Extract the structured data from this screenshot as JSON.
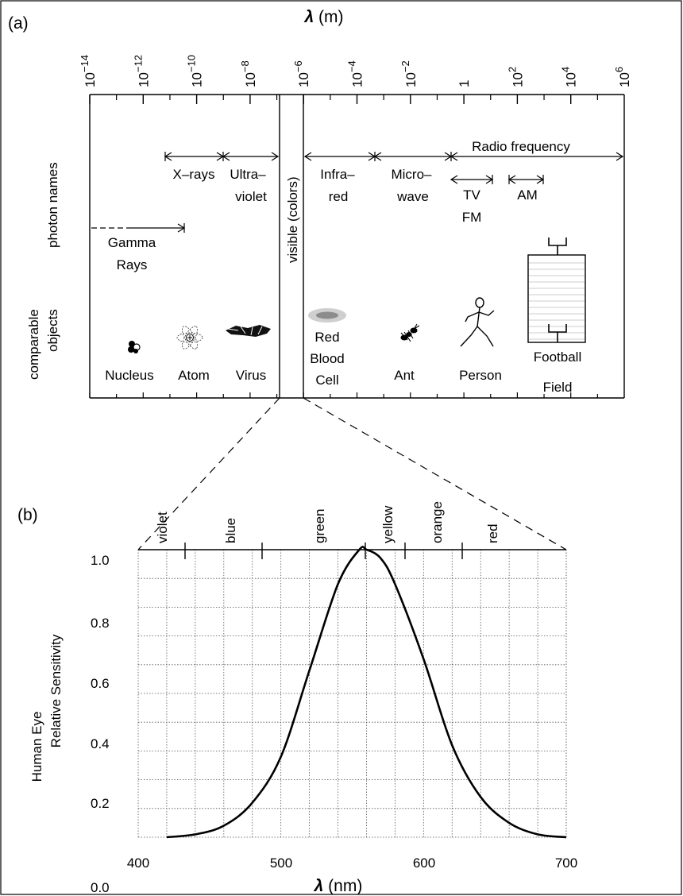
{
  "panel_a": {
    "panel_label": "(a)",
    "axis_title_symbol": "λ",
    "axis_title_unit": " (m)",
    "ticks": [
      {
        "base": "10",
        "exp": "−14"
      },
      {
        "base": "10",
        "exp": "−12"
      },
      {
        "base": "10",
        "exp": "−10"
      },
      {
        "base": "10",
        "exp": "−8"
      },
      {
        "base": "10",
        "exp": "−6"
      },
      {
        "base": "10",
        "exp": "−4"
      },
      {
        "base": "10",
        "exp": "−2"
      },
      {
        "base": "1",
        "exp": ""
      },
      {
        "base": "10",
        "exp": "2"
      },
      {
        "base": "10",
        "exp": "4"
      },
      {
        "base": "10",
        "exp": "6"
      }
    ],
    "row_label_photon": "photon names",
    "row_label_objects_1": "comparable",
    "row_label_objects_2": "objects",
    "visible_band_label": "visible (colors)",
    "bands": {
      "xrays": "X–rays",
      "uv_1": "Ultra–",
      "uv_2": "violet",
      "ir_1": "Infra–",
      "ir_2": "red",
      "mw_1": "Micro–",
      "mw_2": "wave",
      "radio": "Radio frequency",
      "tvfm_1": "TV",
      "tvfm_2": "FM",
      "am": "AM",
      "gamma_1": "Gamma",
      "gamma_2": "Rays"
    },
    "objects": {
      "nucleus": "Nucleus",
      "atom": "Atom",
      "virus": "Virus",
      "rbc_1": "Red",
      "rbc_2": "Blood",
      "rbc_3": "Cell",
      "ant": "Ant",
      "person": "Person",
      "field_1": "Football",
      "field_2": "Field"
    }
  },
  "panel_b": {
    "panel_label": "(b)",
    "color_bands": [
      "violet",
      "blue",
      "green",
      "yellow",
      "orange",
      "red"
    ]
  },
  "chart_data": {
    "type": "line",
    "xlabel_symbol": "λ",
    "xlabel_unit": " (nm)",
    "ylabel_1": "Human Eye",
    "ylabel_2": "Relative Sensitivity",
    "xlim": [
      400,
      700
    ],
    "ylim": [
      0.0,
      1.0
    ],
    "x_ticks": [
      "400",
      "500",
      "600",
      "700"
    ],
    "y_ticks": [
      "0.0",
      "0.2",
      "0.4",
      "0.6",
      "0.8",
      "1.0"
    ],
    "grid": true,
    "series": [
      {
        "x": [
          420,
          440,
          460,
          480,
          500,
          520,
          540,
          555,
          560,
          570,
          580,
          600,
          620,
          640,
          660,
          680,
          700
        ],
        "y": [
          0.0,
          0.01,
          0.04,
          0.12,
          0.28,
          0.58,
          0.88,
          1.0,
          1.0,
          0.97,
          0.88,
          0.62,
          0.32,
          0.14,
          0.05,
          0.01,
          0.0
        ]
      }
    ]
  }
}
